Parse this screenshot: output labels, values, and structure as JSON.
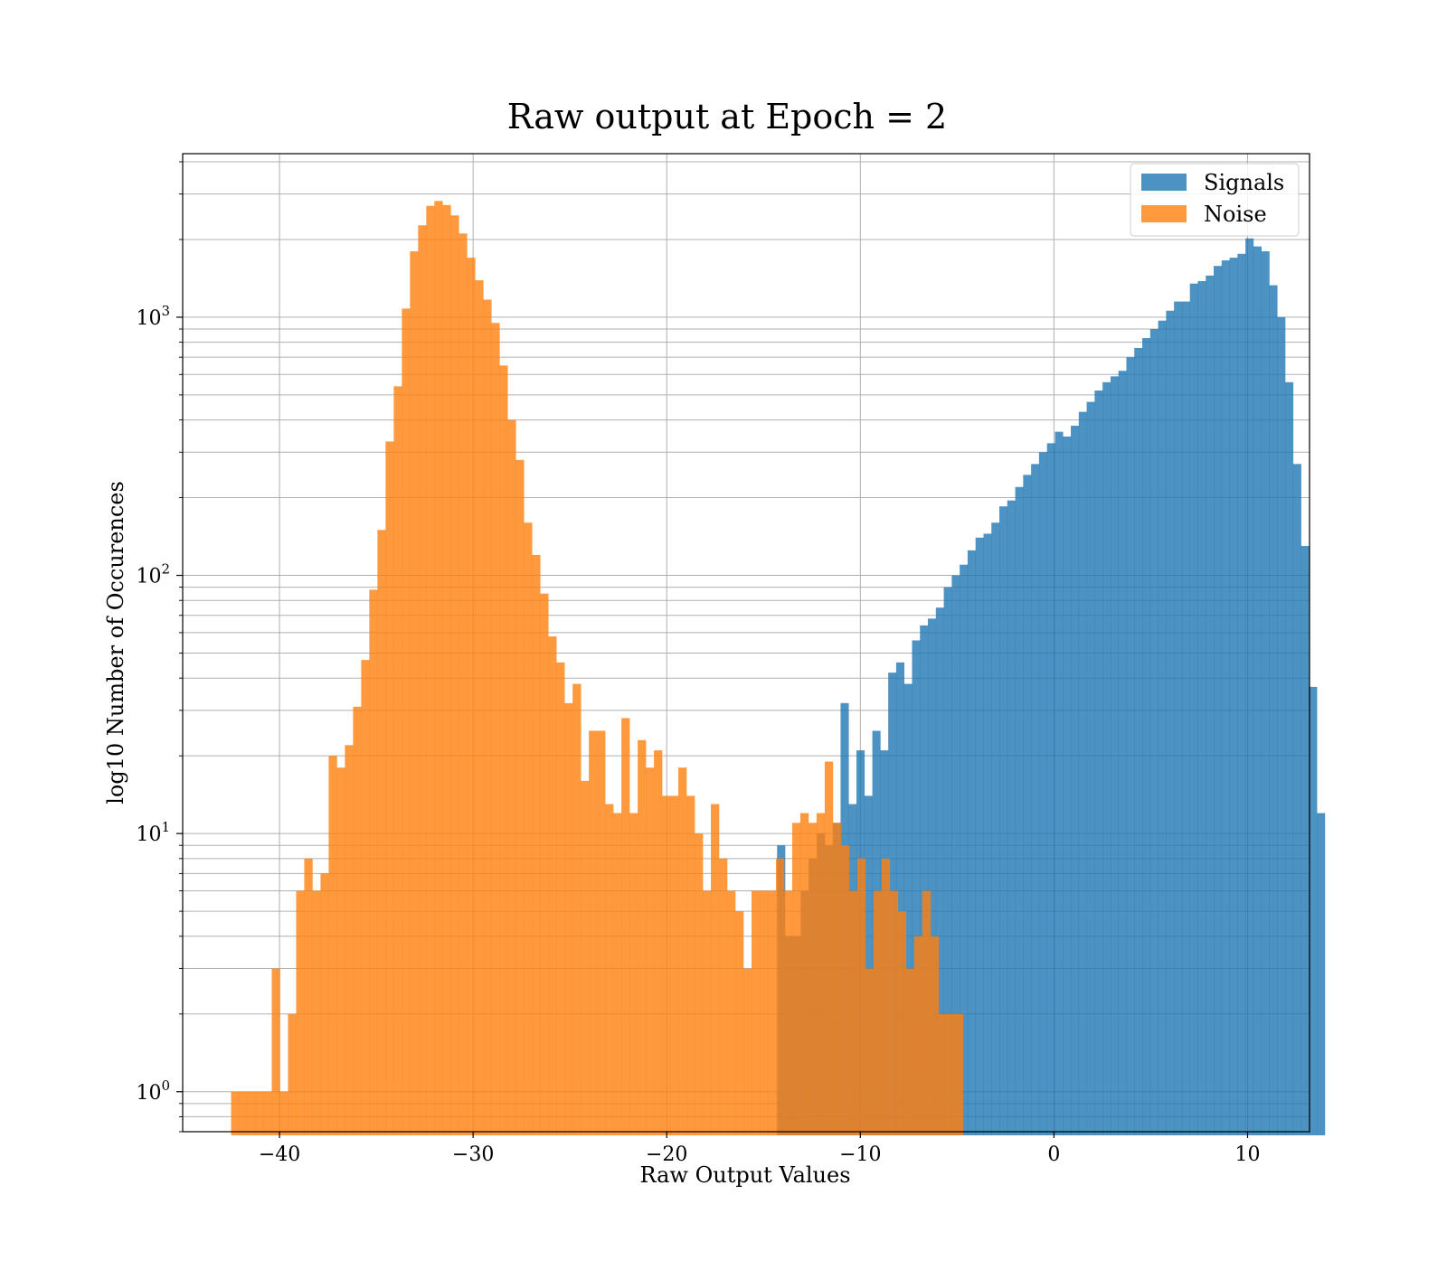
{
  "chart_data": {
    "type": "bar",
    "title": "Raw output at Epoch = 2",
    "xlabel": "Raw Output Values",
    "ylabel": "log10 Number of Occurences",
    "yscale": "log",
    "xlim": [
      -45.0,
      13.2
    ],
    "ylim": [
      0.7,
      4300
    ],
    "grid": true,
    "legend_position": "top-right",
    "x_ticks": [
      -40,
      -30,
      -20,
      -10,
      0,
      10
    ],
    "x_tick_labels": [
      "−40",
      "−30",
      "−20",
      "−10",
      "0",
      "10"
    ],
    "y_ticks": [
      1,
      10,
      100,
      1000
    ],
    "y_tick_labels": [
      {
        "base": "10",
        "exp": "0"
      },
      {
        "base": "10",
        "exp": "1"
      },
      {
        "base": "10",
        "exp": "2"
      },
      {
        "base": "10",
        "exp": "3"
      }
    ],
    "series": [
      {
        "name": "Signals",
        "color": "#1f77b4",
        "opacity": 0.8,
        "bin_start": -14.3,
        "bin_width": 0.41,
        "counts": [
          9,
          4,
          4,
          6,
          8,
          10,
          9,
          11,
          32,
          13,
          21,
          14,
          25,
          21,
          42,
          46,
          38,
          56,
          64,
          68,
          75,
          90,
          100,
          110,
          125,
          140,
          145,
          160,
          185,
          195,
          220,
          245,
          270,
          300,
          325,
          360,
          345,
          380,
          430,
          470,
          520,
          560,
          590,
          620,
          700,
          760,
          830,
          900,
          970,
          1060,
          1150,
          1150,
          1350,
          1380,
          1450,
          1580,
          1660,
          1700,
          1760,
          2020,
          1880,
          1800,
          1330,
          1000,
          560,
          270,
          130,
          37,
          12
        ]
      },
      {
        "name": "Noise",
        "color": "#ff7f0e",
        "opacity": 0.8,
        "bin_start": -42.5,
        "bin_width": 0.42,
        "counts": [
          1,
          1,
          1,
          1,
          1,
          3,
          1,
          2,
          6,
          8,
          6,
          7,
          20,
          18,
          22,
          31,
          47,
          88,
          150,
          330,
          540,
          1080,
          1800,
          2270,
          2700,
          2820,
          2720,
          2480,
          2110,
          1700,
          1390,
          1170,
          950,
          650,
          400,
          280,
          160,
          120,
          85,
          58,
          46,
          32,
          38,
          16,
          25,
          25,
          13,
          12,
          28,
          12,
          23,
          18,
          21,
          14,
          14,
          18,
          14,
          10,
          6,
          13,
          8,
          6,
          5,
          3,
          6,
          6,
          6,
          8,
          6,
          11,
          12,
          11,
          12,
          19,
          11,
          9,
          6,
          8,
          3,
          6,
          8,
          6,
          5,
          3,
          4,
          6,
          4,
          2,
          2,
          2
        ]
      }
    ]
  }
}
